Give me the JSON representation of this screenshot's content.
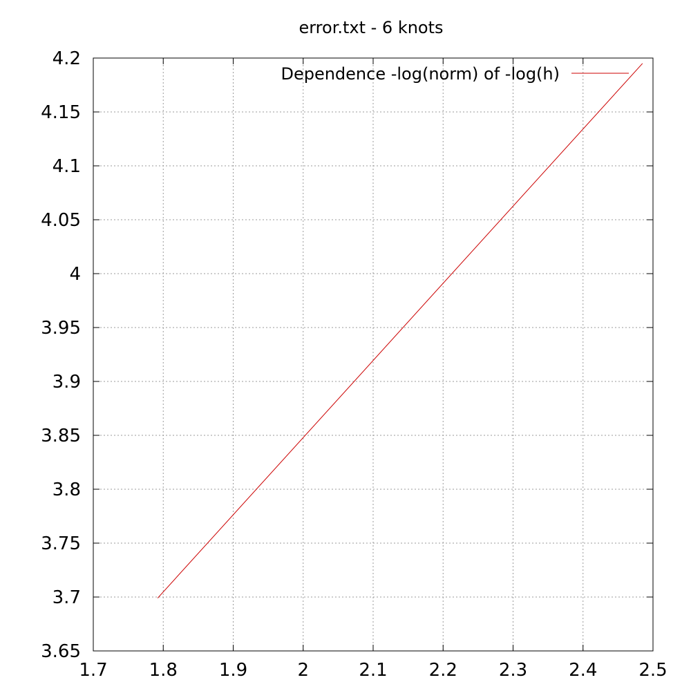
{
  "chart_data": {
    "type": "line",
    "title": "error.txt - 6 knots",
    "xlabel": "",
    "ylabel": "",
    "xlim": [
      1.7,
      2.5
    ],
    "ylim": [
      3.65,
      4.2
    ],
    "x_ticks": [
      "1.7",
      "1.8",
      "1.9",
      "2",
      "2.1",
      "2.2",
      "2.3",
      "2.4",
      "2.5"
    ],
    "y_ticks": [
      "3.65",
      "3.7",
      "3.75",
      "3.8",
      "3.85",
      "3.9",
      "3.95",
      "4",
      "4.05",
      "4.1",
      "4.15",
      "4.2"
    ],
    "grid": true,
    "legend_position": "top-right",
    "series": [
      {
        "name": "Dependence -log(norm) of -log(h)",
        "color": "#cc0000",
        "x": [
          1.792,
          2.485
        ],
        "y": [
          3.699,
          4.195
        ]
      }
    ]
  }
}
